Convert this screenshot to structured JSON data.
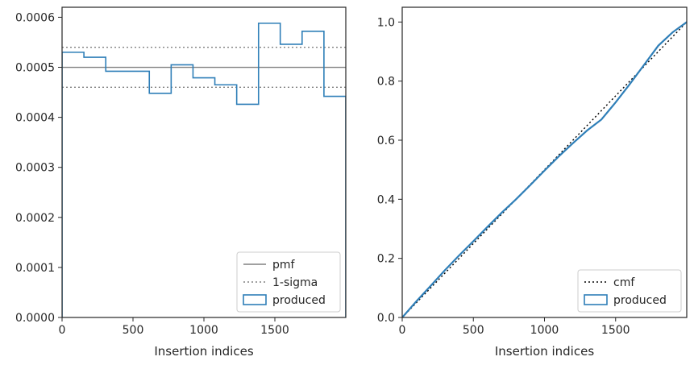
{
  "chart_data": [
    {
      "type": "histogram-step",
      "xlabel": "Insertion indices",
      "ylabel": "",
      "xlim": [
        0,
        2000
      ],
      "ylim": [
        0,
        0.00062
      ],
      "x_ticks": [
        0,
        500,
        1000,
        1500
      ],
      "x_tick_labels": [
        "0",
        "500",
        "1000",
        "1500"
      ],
      "y_ticks": [
        0,
        0.0001,
        0.0002,
        0.0003,
        0.0004,
        0.0005,
        0.0006
      ],
      "y_tick_labels": [
        "0.0000",
        "0.0001",
        "0.0002",
        "0.0003",
        "0.0004",
        "0.0005",
        "0.0006"
      ],
      "grid": false,
      "legend_position": "lower right",
      "reference_lines": [
        {
          "name": "pmf",
          "y": 0.0005,
          "style": "solid",
          "color": "#808080"
        },
        {
          "name": "1-sigma",
          "y": 0.00054,
          "style": "dotted",
          "color": "#808080"
        },
        {
          "name": "1-sigma",
          "y": 0.00046,
          "style": "dotted",
          "color": "#808080"
        }
      ],
      "series": [
        {
          "name": "produced",
          "color": "#2f7fb8",
          "bin_edges": [
            0,
            154,
            308,
            462,
            615,
            769,
            923,
            1077,
            1231,
            1385,
            1538,
            1692,
            1846,
            2000
          ],
          "values": [
            0.00053,
            0.00052,
            0.000492,
            0.000492,
            0.000448,
            0.000505,
            0.000479,
            0.000465,
            0.000426,
            0.000588,
            0.000546,
            0.000572,
            0.000442
          ]
        }
      ],
      "legend": [
        {
          "label": "pmf",
          "kind": "line-solid",
          "color": "#808080"
        },
        {
          "label": "1-sigma",
          "kind": "line-dotted",
          "color": "#808080"
        },
        {
          "label": "produced",
          "kind": "patch",
          "color": "#2f7fb8"
        }
      ]
    },
    {
      "type": "line",
      "xlabel": "Insertion indices",
      "ylabel": "",
      "xlim": [
        0,
        2000
      ],
      "ylim": [
        0,
        1.05
      ],
      "x_ticks": [
        0,
        500,
        1000,
        1500
      ],
      "x_tick_labels": [
        "0",
        "500",
        "1000",
        "1500"
      ],
      "y_ticks": [
        0,
        0.2,
        0.4,
        0.6,
        0.8,
        1.0
      ],
      "y_tick_labels": [
        "0.0",
        "0.2",
        "0.4",
        "0.6",
        "0.8",
        "1.0"
      ],
      "grid": false,
      "legend_position": "lower right",
      "series": [
        {
          "name": "cmf",
          "style": "dotted",
          "color": "#000000",
          "x": [
            0,
            2000
          ],
          "y": [
            0,
            1.0
          ]
        },
        {
          "name": "produced",
          "style": "solid",
          "color": "#2f7fb8",
          "x": [
            0,
            100,
            200,
            300,
            400,
            500,
            600,
            700,
            800,
            900,
            1000,
            1100,
            1200,
            1300,
            1400,
            1500,
            1600,
            1700,
            1800,
            1900,
            2000
          ],
          "y": [
            0,
            0.055,
            0.107,
            0.16,
            0.21,
            0.258,
            0.307,
            0.355,
            0.4,
            0.448,
            0.497,
            0.545,
            0.59,
            0.633,
            0.67,
            0.728,
            0.79,
            0.855,
            0.92,
            0.965,
            1.0
          ]
        }
      ],
      "legend": [
        {
          "label": "cmf",
          "kind": "line-dotted",
          "color": "#000000"
        },
        {
          "label": "produced",
          "kind": "patch",
          "color": "#2f7fb8"
        }
      ]
    }
  ]
}
